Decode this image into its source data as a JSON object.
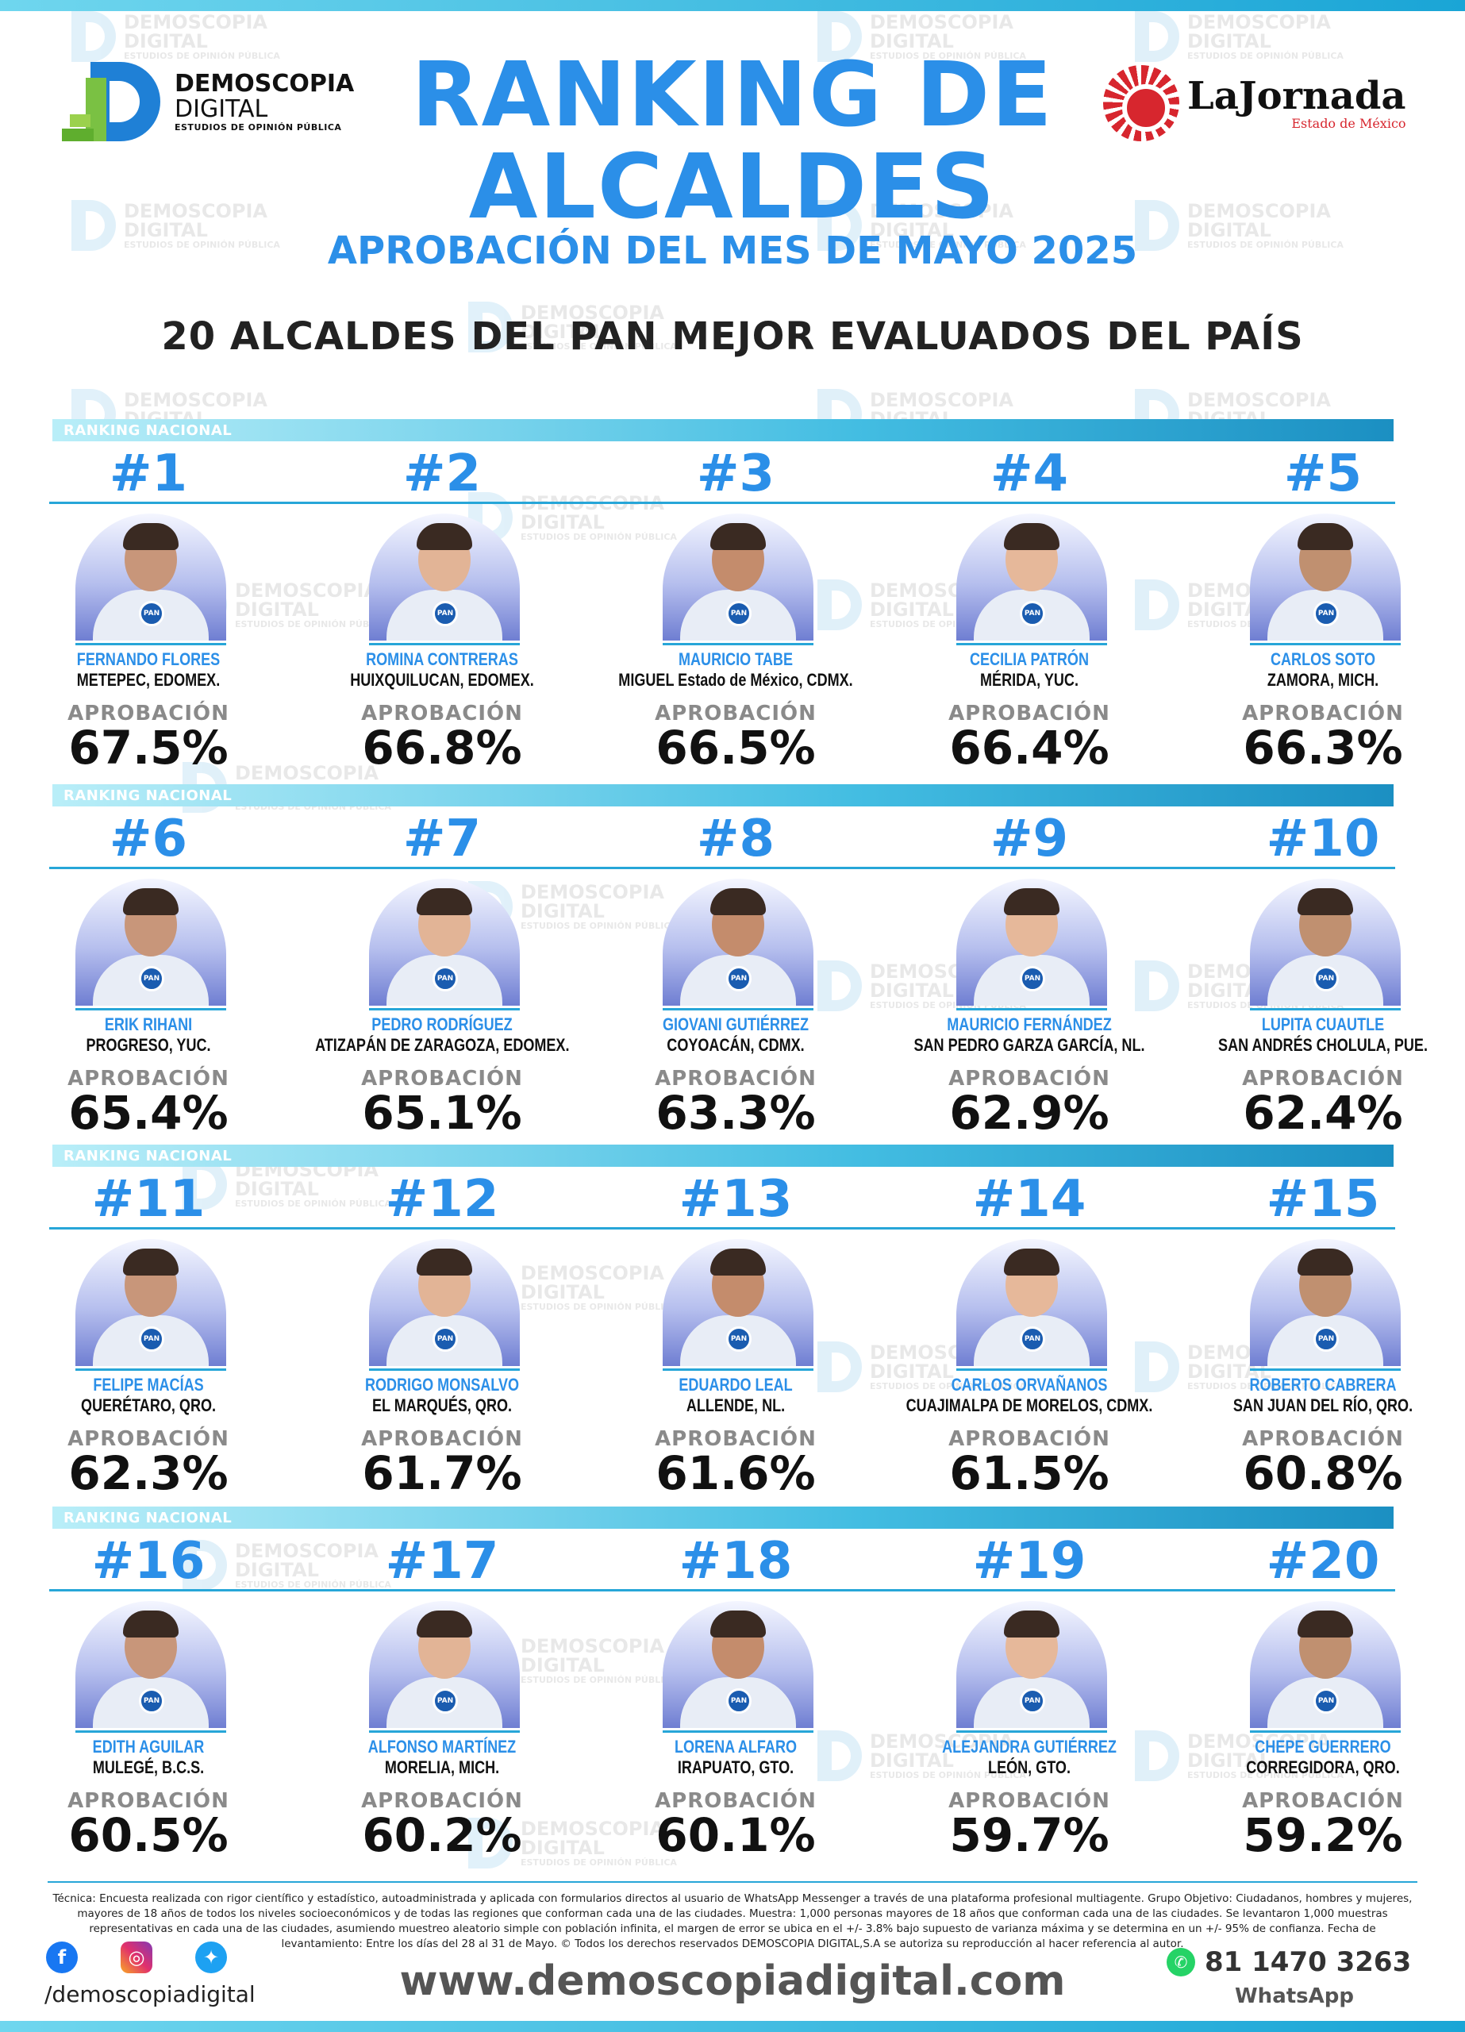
{
  "header": {
    "brand_line1": "DEMOSCOPIA",
    "brand_line2": "DIGITAL",
    "brand_tagline": "ESTUDIOS DE OPINIÓN PÚBLICA",
    "title_line1": "RANKING DE",
    "title_line2": "ALCALDES",
    "subtitle": "APROBACIÓN DEL MES DE MAYO 2025",
    "headline": "20 ALCALDES DEL PAN MEJOR EVALUADOS DEL PAÍS",
    "partner_name": "LaJornada",
    "partner_sub": "Estado de México"
  },
  "watermark": {
    "line1": "DEMOSCOPIA",
    "line2": "DIGITAL",
    "line3": "ESTUDIOS DE OPINIÓN PÚBLICA"
  },
  "section_label": "RANKING NACIONAL",
  "approval_label": "APROBACIÓN",
  "party_badge": "PAN",
  "mayors": [
    {
      "rank": "#1",
      "name": "FERNANDO FLORES",
      "city": "METEPEC, EDOMEX.",
      "approval": "67.5%"
    },
    {
      "rank": "#2",
      "name": "ROMINA CONTRERAS",
      "city": "HUIXQUILUCAN, EDOMEX.",
      "approval": "66.8%"
    },
    {
      "rank": "#3",
      "name": "MAURICIO TABE",
      "city": "MIGUEL Estado de México, CDMX.",
      "approval": "66.5%"
    },
    {
      "rank": "#4",
      "name": "CECILIA PATRÓN",
      "city": "MÉRIDA, YUC.",
      "approval": "66.4%"
    },
    {
      "rank": "#5",
      "name": "CARLOS SOTO",
      "city": "ZAMORA, MICH.",
      "approval": "66.3%"
    },
    {
      "rank": "#6",
      "name": "ERIK RIHANI",
      "city": "PROGRESO, YUC.",
      "approval": "65.4%"
    },
    {
      "rank": "#7",
      "name": "PEDRO RODRÍGUEZ",
      "city": "ATIZAPÁN DE ZARAGOZA, EDOMEX.",
      "approval": "65.1%"
    },
    {
      "rank": "#8",
      "name": "GIOVANI GUTIÉRREZ",
      "city": "COYOACÁN, CDMX.",
      "approval": "63.3%"
    },
    {
      "rank": "#9",
      "name": "MAURICIO FERNÁNDEZ",
      "city": "SAN PEDRO GARZA GARCÍA, NL.",
      "approval": "62.9%"
    },
    {
      "rank": "#10",
      "name": "LUPITA CUAUTLE",
      "city": "SAN ANDRÉS CHOLULA, PUE.",
      "approval": "62.4%"
    },
    {
      "rank": "#11",
      "name": "FELIPE MACÍAS",
      "city": "QUERÉTARO, QRO.",
      "approval": "62.3%"
    },
    {
      "rank": "#12",
      "name": "RODRIGO MONSALVO",
      "city": "EL MARQUÉS, QRO.",
      "approval": "61.7%"
    },
    {
      "rank": "#13",
      "name": "EDUARDO LEAL",
      "city": "ALLENDE, NL.",
      "approval": "61.6%"
    },
    {
      "rank": "#14",
      "name": "CARLOS ORVAÑANOS",
      "city": "CUAJIMALPA DE MORELOS, CDMX.",
      "approval": "61.5%"
    },
    {
      "rank": "#15",
      "name": "ROBERTO CABRERA",
      "city": "SAN JUAN DEL RÍO, QRO.",
      "approval": "60.8%"
    },
    {
      "rank": "#16",
      "name": "EDITH AGUILAR",
      "city": "MULEGÉ, B.C.S.",
      "approval": "60.5%"
    },
    {
      "rank": "#17",
      "name": "ALFONSO MARTÍNEZ",
      "city": "MORELIA, MICH.",
      "approval": "60.2%"
    },
    {
      "rank": "#18",
      "name": "LORENA ALFARO",
      "city": "IRAPUATO, GTO.",
      "approval": "60.1%"
    },
    {
      "rank": "#19",
      "name": "ALEJANDRA GUTIÉRREZ",
      "city": "LEÓN, GTO.",
      "approval": "59.7%"
    },
    {
      "rank": "#20",
      "name": "CHEPE GUERRERO",
      "city": "CORREGIDORA, QRO.",
      "approval": "59.2%"
    }
  ],
  "footer": {
    "technical_note": "Técnica: Encuesta realizada con rigor científico y estadístico, autoadministrada y aplicada con formularios directos al usuario de WhatsApp Messenger a través de una plataforma profesional multiagente. Grupo Objetivo: Ciudadanos, hombres y mujeres, mayores de 18 años de todos los niveles socioeconómicos y de todas las regiones que conforman cada una de las ciudades. Muestra: 1,000 personas mayores de 18 años que conforman cada una de las ciudades. Se levantaron 1,000 muestras representativas en cada una de las ciudades, asumiendo muestreo aleatorio simple con población infinita, el margen de error se ubica en el +/- 3.8% bajo supuesto de varianza máxima y se determina en un +/- 95% de confianza. Fecha de levantamiento: Entre los días del 28 al 31 de Mayo. © Todos los derechos reservados DEMOSCOPIA DIGITAL,S.A se autoriza su reproducción al hacer referencia al autor.",
    "facebook_glyph": "f",
    "instagram_glyph": "◎",
    "twitter_glyph": "✦",
    "handle": "/demoscopiadigital",
    "website": "www.demoscopiadigital.com",
    "whatsapp_glyph": "✆",
    "whatsapp_number": "81 1470 3263",
    "whatsapp_label": "WhatsApp"
  }
}
